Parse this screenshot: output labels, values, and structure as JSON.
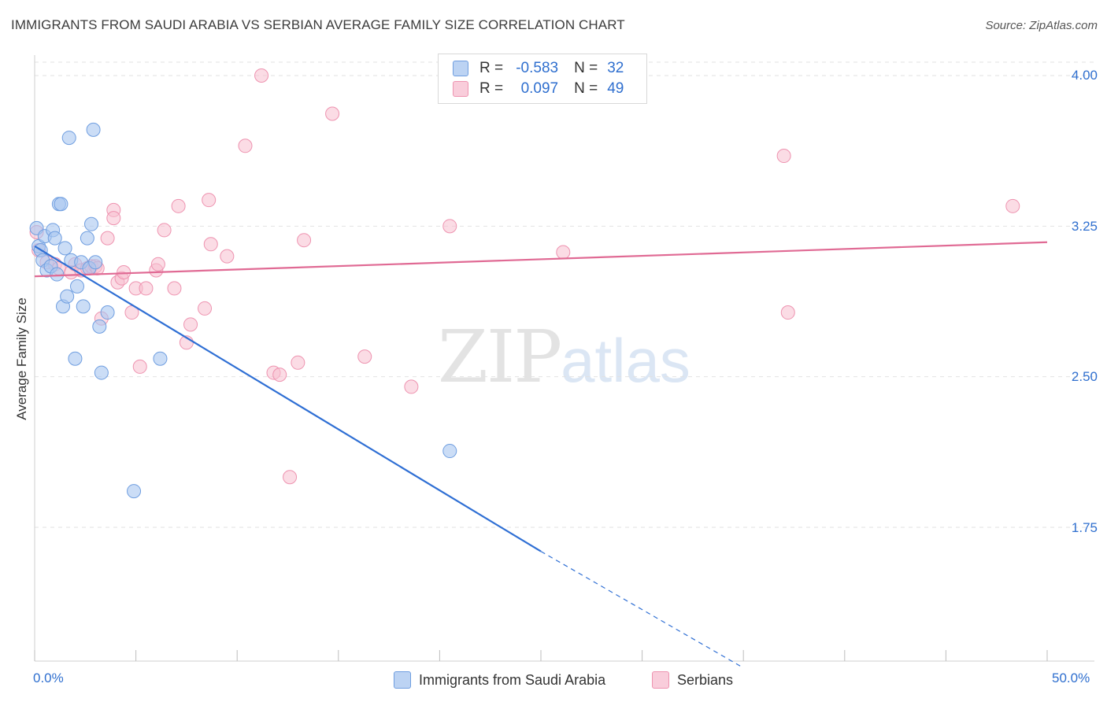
{
  "header": {
    "title": "IMMIGRANTS FROM SAUDI ARABIA VS SERBIAN AVERAGE FAMILY SIZE CORRELATION CHART",
    "source": "Source: ZipAtlas.com"
  },
  "watermark": {
    "zip": "ZIP",
    "atlas": "atlas"
  },
  "legend": {
    "rows": [
      {
        "r_label": "R =",
        "r_value": "-0.583",
        "n_label": "N =",
        "n_value": "32"
      },
      {
        "r_label": "R =",
        "r_value": "0.097",
        "n_label": "N =",
        "n_value": "49"
      }
    ]
  },
  "bottom_legend": {
    "series1": "Immigrants from Saudi Arabia",
    "series2": "Serbians"
  },
  "chart_data": {
    "type": "scatter",
    "title": "IMMIGRANTS FROM SAUDI ARABIA VS SERBIAN AVERAGE FAMILY SIZE CORRELATION CHART",
    "xlabel": "",
    "ylabel": "Average Family Size",
    "xlim": [
      0,
      50
    ],
    "ylim": [
      1.1,
      4.15
    ],
    "x_tick_labels": [
      "0.0%",
      "50.0%"
    ],
    "y_ticks": [
      1.75,
      2.5,
      3.25,
      4.0
    ],
    "y_tick_labels": [
      "1.75",
      "2.50",
      "3.25",
      "4.00"
    ],
    "x_minor_ticks": [
      0,
      5,
      10,
      15,
      20,
      25,
      30,
      35,
      40,
      45,
      50
    ],
    "grid": "horizontal dashed",
    "colors": {
      "series1_fill": "#a9c7f0",
      "series1_stroke": "#6f9ee0",
      "series1_line": "#2f6fd4",
      "series2_fill": "#f7bfd0",
      "series2_stroke": "#ee93b0",
      "series2_line": "#e06a94",
      "tick_text": "#2f6fcf",
      "grid": "#e2e2e2"
    },
    "series": [
      {
        "name": "Immigrants from Saudi Arabia",
        "points": [
          [
            0.1,
            3.24
          ],
          [
            0.2,
            3.15
          ],
          [
            0.3,
            3.13
          ],
          [
            0.4,
            3.08
          ],
          [
            0.5,
            3.2
          ],
          [
            0.6,
            3.03
          ],
          [
            0.8,
            3.05
          ],
          [
            0.9,
            3.23
          ],
          [
            1.0,
            3.19
          ],
          [
            1.1,
            3.01
          ],
          [
            1.2,
            3.36
          ],
          [
            1.3,
            3.36
          ],
          [
            1.4,
            2.85
          ],
          [
            1.5,
            3.14
          ],
          [
            1.6,
            2.9
          ],
          [
            1.7,
            3.69
          ],
          [
            1.8,
            3.08
          ],
          [
            2.0,
            2.59
          ],
          [
            2.1,
            2.95
          ],
          [
            2.3,
            3.07
          ],
          [
            2.4,
            2.85
          ],
          [
            2.6,
            3.19
          ],
          [
            2.7,
            3.04
          ],
          [
            2.8,
            3.26
          ],
          [
            2.9,
            3.73
          ],
          [
            3.0,
            3.07
          ],
          [
            3.2,
            2.75
          ],
          [
            3.3,
            2.52
          ],
          [
            3.6,
            2.82
          ],
          [
            4.9,
            1.93
          ],
          [
            6.2,
            2.59
          ],
          [
            20.5,
            2.13
          ]
        ],
        "trend": {
          "x0": 0,
          "y0": 3.15,
          "x1": 25,
          "y1": 1.63,
          "dashed_to_x": 35,
          "dashed_to_y": 1.05
        }
      },
      {
        "name": "Serbians",
        "points": [
          [
            0.1,
            3.22
          ],
          [
            0.2,
            3.13
          ],
          [
            0.6,
            3.07
          ],
          [
            1.0,
            3.06
          ],
          [
            1.2,
            3.04
          ],
          [
            1.8,
            3.02
          ],
          [
            2.0,
            3.06
          ],
          [
            2.3,
            3.03
          ],
          [
            2.6,
            3.04
          ],
          [
            2.8,
            3.05
          ],
          [
            3.0,
            3.05
          ],
          [
            3.1,
            3.04
          ],
          [
            3.3,
            2.79
          ],
          [
            3.6,
            3.19
          ],
          [
            3.9,
            3.33
          ],
          [
            3.9,
            3.29
          ],
          [
            4.1,
            2.97
          ],
          [
            4.3,
            2.99
          ],
          [
            4.4,
            3.02
          ],
          [
            4.8,
            2.82
          ],
          [
            5.0,
            2.94
          ],
          [
            5.2,
            2.55
          ],
          [
            5.5,
            2.94
          ],
          [
            6.0,
            3.03
          ],
          [
            6.1,
            3.06
          ],
          [
            6.4,
            3.23
          ],
          [
            6.9,
            2.94
          ],
          [
            7.1,
            3.35
          ],
          [
            7.5,
            2.67
          ],
          [
            7.7,
            2.76
          ],
          [
            8.4,
            2.84
          ],
          [
            8.6,
            3.38
          ],
          [
            8.7,
            3.16
          ],
          [
            9.5,
            3.1
          ],
          [
            10.4,
            3.65
          ],
          [
            11.2,
            4.0
          ],
          [
            11.8,
            2.52
          ],
          [
            12.1,
            2.51
          ],
          [
            12.6,
            2.0
          ],
          [
            13.0,
            2.57
          ],
          [
            13.3,
            3.18
          ],
          [
            14.7,
            3.81
          ],
          [
            16.3,
            2.6
          ],
          [
            18.6,
            2.45
          ],
          [
            20.5,
            3.25
          ],
          [
            26.1,
            3.12
          ],
          [
            37.0,
            3.6
          ],
          [
            37.2,
            2.82
          ],
          [
            48.3,
            3.35
          ]
        ],
        "trend": {
          "x0": 0,
          "y0": 3.0,
          "x1": 50,
          "y1": 3.17
        }
      }
    ]
  }
}
